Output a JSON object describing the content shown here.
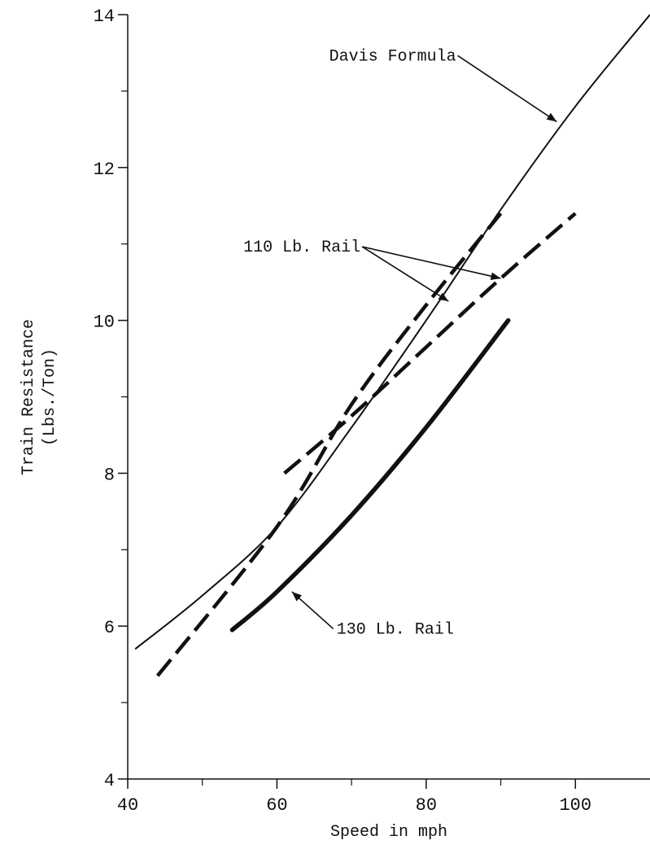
{
  "chart_data": {
    "type": "line",
    "title": "",
    "xlabel": "Speed in mph",
    "ylabel": [
      "Train Resistance",
      "(Lbs./Ton)"
    ],
    "xlim": [
      40,
      110
    ],
    "ylim": [
      4,
      14
    ],
    "x_ticks": [
      40,
      60,
      80,
      100
    ],
    "y_ticks": [
      4,
      6,
      8,
      10,
      12,
      14
    ],
    "x_minor_ticks": [
      50,
      70,
      90
    ],
    "y_minor_ticks": [
      5,
      7,
      9,
      11,
      13
    ],
    "grid": false,
    "legend": "none",
    "series": [
      {
        "name": "Davis Formula",
        "style": "solid-thin",
        "x": [
          41,
          50,
          60,
          70,
          80,
          90,
          100,
          110
        ],
        "y": [
          5.7,
          6.4,
          7.3,
          8.6,
          10.0,
          11.45,
          12.8,
          14.0
        ]
      },
      {
        "name": "110 Lb. Rail",
        "style": "dashed",
        "x": [
          44,
          60,
          70,
          80,
          90
        ],
        "y": [
          5.35,
          7.3,
          8.9,
          10.2,
          11.4
        ]
      },
      {
        "name": "110 Lb. Rail",
        "style": "dashed",
        "x": [
          61,
          70,
          80,
          90,
          100
        ],
        "y": [
          8.0,
          8.75,
          9.65,
          10.55,
          11.4
        ]
      },
      {
        "name": "130 Lb. Rail",
        "style": "solid-thick",
        "x": [
          54,
          60,
          70,
          80,
          91
        ],
        "y": [
          5.95,
          6.45,
          7.45,
          8.6,
          10.0
        ]
      }
    ],
    "annotations": [
      {
        "text": "Davis Formula",
        "text_at": [
          67,
          13.4
        ],
        "arrows_to": [
          [
            97.5,
            12.6
          ]
        ]
      },
      {
        "text": "110 Lb. Rail",
        "text_at": [
          55.5,
          10.9
        ],
        "arrows_to": [
          [
            83,
            10.25
          ],
          [
            90,
            10.55
          ]
        ]
      },
      {
        "text": "130 Lb. Rail",
        "text_at": [
          68,
          5.9
        ],
        "arrows_to": [
          [
            62,
            6.45
          ]
        ]
      }
    ]
  }
}
